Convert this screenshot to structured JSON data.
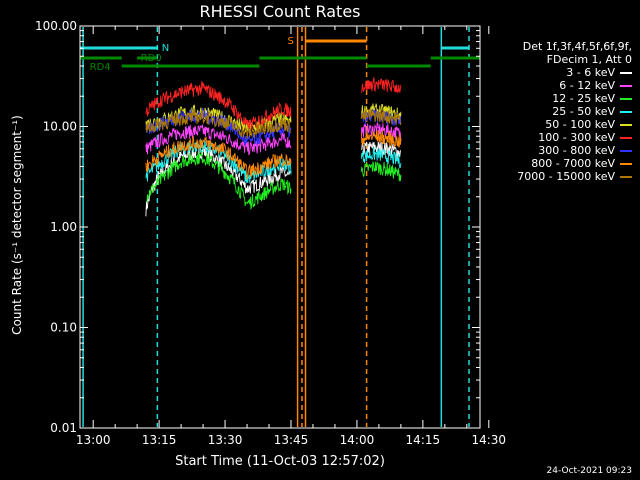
{
  "chart_data": {
    "type": "line",
    "title": "RHESSI Count Rates",
    "xlabel": "Start Time (11-Oct-03 12:57:02)",
    "ylabel": "Count Rate (s⁻¹ detector segment⁻¹)",
    "yscale": "log",
    "ylim": [
      0.01,
      100.0
    ],
    "x_tick_labels": [
      "13:00",
      "13:15",
      "13:30",
      "13:45",
      "14:00",
      "14:15",
      "14:30"
    ],
    "y_tick_labels": [
      "0.01",
      "0.10",
      "1.00",
      "10.00",
      "100.00"
    ],
    "x_ticks_minutes": [
      0,
      15,
      30,
      45,
      60,
      75,
      90
    ],
    "x_range_minutes": [
      -3,
      88
    ],
    "legend_header": [
      "Det 1f,3f,4f,5f,6f,9f,",
      "FDecim 1, Att 0"
    ],
    "series": [
      {
        "name": "3 - 6 keV",
        "color": "#ffffff",
        "segments": [
          {
            "x": [
              12,
              15,
              20,
              25,
              30,
              35,
              37,
              40,
              43,
              45
            ],
            "y": [
              1.5,
              3.2,
              5.0,
              5.7,
              4.1,
              2.4,
              2.6,
              3.0,
              3.5,
              3.1
            ]
          },
          {
            "x": [
              61,
              64,
              67,
              70
            ],
            "y": [
              6.0,
              6.2,
              6.0,
              5.5
            ]
          }
        ]
      },
      {
        "name": "6 - 12 keV",
        "color": "#ff44ff",
        "segments": [
          {
            "x": [
              12,
              15,
              20,
              25,
              30,
              35,
              37,
              40,
              43,
              45
            ],
            "y": [
              6.0,
              7.2,
              8.8,
              9.0,
              7.8,
              6.0,
              6.2,
              6.8,
              7.5,
              6.8
            ]
          },
          {
            "x": [
              61,
              64,
              67,
              70
            ],
            "y": [
              9.0,
              9.4,
              9.1,
              8.5
            ]
          }
        ]
      },
      {
        "name": "12 - 25 keV",
        "color": "#22ee22",
        "segments": [
          {
            "x": [
              12,
              15,
              20,
              25,
              30,
              35,
              37,
              40,
              43,
              45
            ],
            "y": [
              2.0,
              2.8,
              4.5,
              5.0,
              3.5,
              1.7,
              1.9,
              2.3,
              2.7,
              2.4
            ]
          },
          {
            "x": [
              61,
              64,
              67,
              70
            ],
            "y": [
              3.6,
              4.0,
              3.7,
              3.3
            ]
          }
        ]
      },
      {
        "name": "25 - 50 keV",
        "color": "#22eeee",
        "segments": [
          {
            "x": [
              12,
              15,
              20,
              25,
              30,
              35,
              37,
              40,
              43,
              45
            ],
            "y": [
              3.2,
              4.2,
              6.0,
              6.5,
              5.2,
              3.0,
              3.3,
              3.8,
              4.3,
              3.9
            ]
          },
          {
            "x": [
              61,
              64,
              67,
              70
            ],
            "y": [
              5.0,
              5.3,
              5.0,
              4.5
            ]
          }
        ]
      },
      {
        "name": "50 - 100 keV",
        "color": "#dddd22",
        "segments": [
          {
            "x": [
              12,
              15,
              20,
              25,
              30,
              35,
              37,
              40,
              43,
              45
            ],
            "y": [
              10.5,
              11.5,
              13.5,
              14.0,
              12.0,
              9.5,
              10.0,
              11.0,
              12.0,
              11.0
            ]
          },
          {
            "x": [
              61,
              64,
              67,
              70
            ],
            "y": [
              14.0,
              14.5,
              14.0,
              13.0
            ]
          }
        ]
      },
      {
        "name": "100 - 300 keV",
        "color": "#ff2222",
        "segments": [
          {
            "x": [
              12,
              15,
              20,
              25,
              30,
              35,
              37,
              40,
              43,
              45
            ],
            "y": [
              14.0,
              18.0,
              22.0,
              24.0,
              18.0,
              10.0,
              11.0,
              13.0,
              15.0,
              14.0
            ]
          },
          {
            "x": [
              61,
              64,
              67,
              70
            ],
            "y": [
              25.0,
              26.5,
              25.5,
              24.0
            ]
          }
        ]
      },
      {
        "name": "300 - 800 keV",
        "color": "#3333ff",
        "segments": [
          {
            "x": [
              12,
              15,
              20,
              25,
              30,
              35,
              37,
              40,
              43,
              45
            ],
            "y": [
              9.0,
              10.5,
              12.5,
              13.0,
              11.0,
              7.0,
              7.5,
              8.5,
              9.5,
              8.8
            ]
          },
          {
            "x": [
              61,
              64,
              67,
              70
            ],
            "y": [
              12.0,
              12.8,
              12.3,
              11.5
            ]
          }
        ]
      },
      {
        "name": "800 - 7000 keV",
        "color": "#ff8800",
        "segments": [
          {
            "x": [
              12,
              15,
              20,
              25,
              30,
              35,
              37,
              40,
              43,
              45
            ],
            "y": [
              4.0,
              5.0,
              6.5,
              7.0,
              5.8,
              3.5,
              3.8,
              4.3,
              4.8,
              4.3
            ]
          },
          {
            "x": [
              61,
              64,
              67,
              70
            ],
            "y": [
              7.5,
              8.0,
              7.6,
              7.0
            ]
          }
        ]
      },
      {
        "name": "7000 - 15000 keV",
        "color": "#aa7700",
        "segments": [
          {
            "x": [
              12,
              15,
              20,
              25,
              30,
              35,
              37,
              40,
              43,
              45
            ],
            "y": [
              9.5,
              10.5,
              12.0,
              12.5,
              11.0,
              8.5,
              9.0,
              9.8,
              10.8,
              10.0
            ]
          },
          {
            "x": [
              61,
              64,
              67,
              70
            ],
            "y": [
              12.5,
              13.0,
              12.5,
              11.8
            ]
          }
        ]
      }
    ],
    "annotations": [
      {
        "text": "N",
        "color": "#22dddd"
      },
      {
        "text": "RD0",
        "color": "#008800"
      },
      {
        "text": "RD4",
        "color": "#008800"
      },
      {
        "text": "S",
        "color": "#ff8800"
      }
    ],
    "timestamp": "24-Oct-2021 09:23"
  }
}
